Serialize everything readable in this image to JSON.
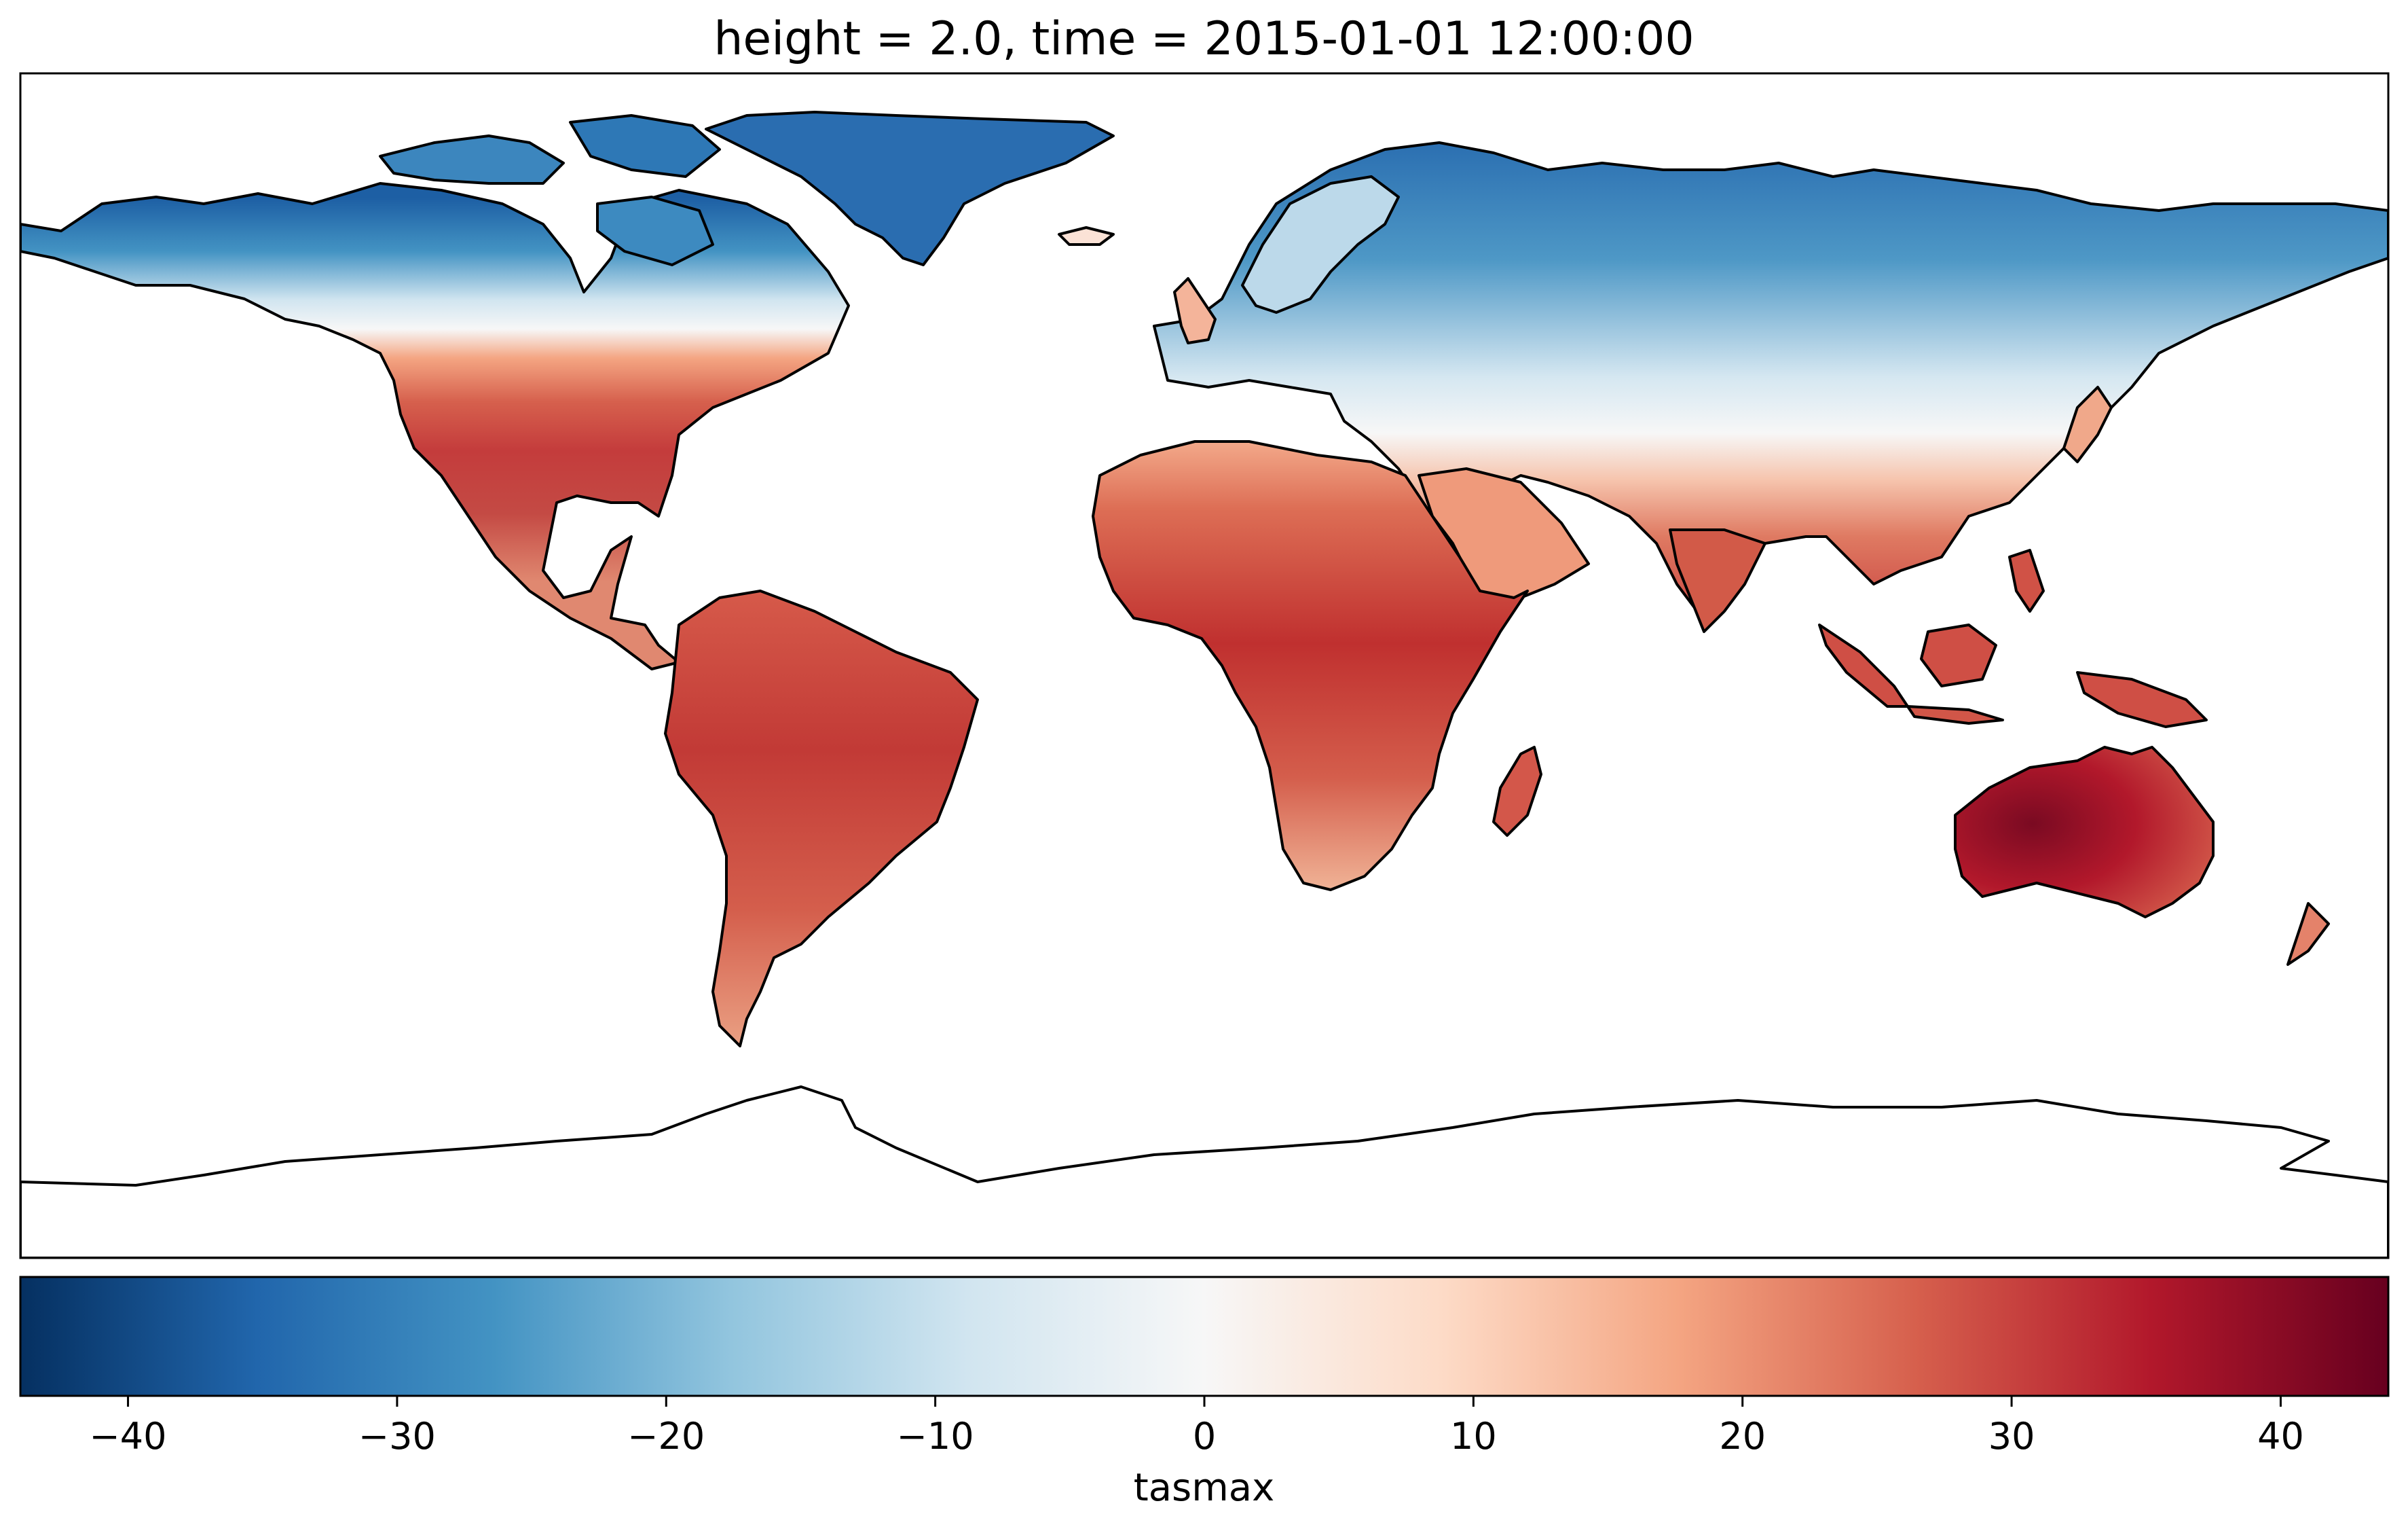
{
  "title": "height = 2.0, time = 2015-01-01 12:00:00",
  "colorbar": {
    "label": "tasmax",
    "colormap": "RdBu_r",
    "vmin": -44,
    "vmax": 44,
    "ticks": [
      -40,
      -30,
      -20,
      -10,
      0,
      10,
      20,
      30,
      40
    ],
    "tick_labels": [
      "−40",
      "−30",
      "−20",
      "−10",
      "0",
      "10",
      "20",
      "30",
      "40"
    ],
    "colors": [
      "#053061",
      "#2166ac",
      "#4393c3",
      "#92c5de",
      "#d1e5f0",
      "#f7f7f7",
      "#fddbc7",
      "#f4a582",
      "#d6604d",
      "#b2182b",
      "#67001f"
    ]
  },
  "map": {
    "projection": "PlateCarree",
    "variable": "tasmax",
    "ocean_color": "#ffffff",
    "coastline_color": "#000000"
  }
}
